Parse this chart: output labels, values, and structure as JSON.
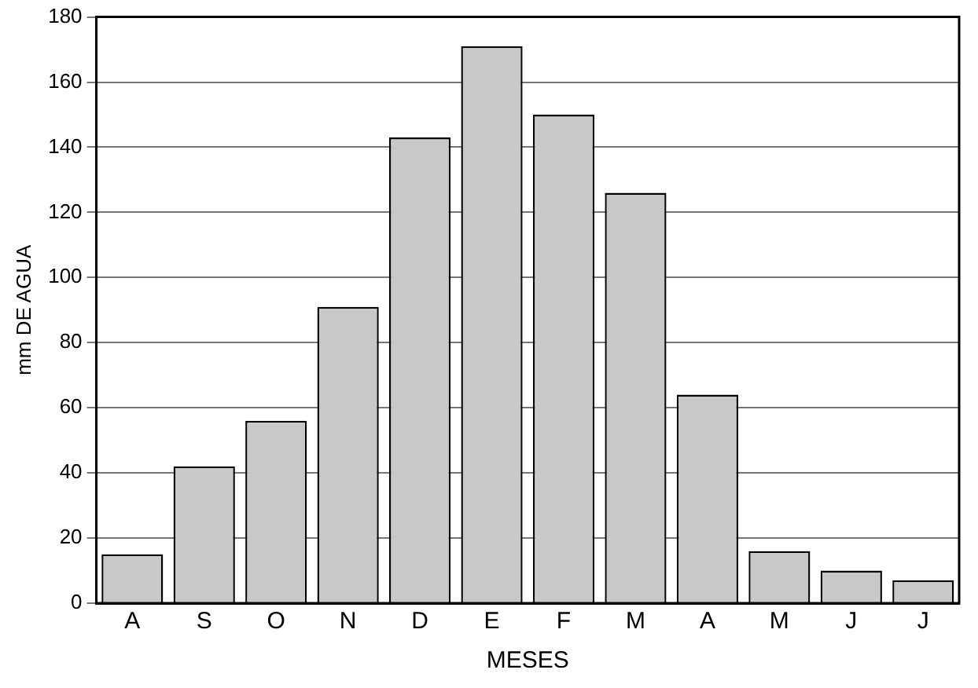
{
  "chart_data": {
    "type": "bar",
    "xlabel": "MESES",
    "ylabel": "mm DE AGUA",
    "categories": [
      "A",
      "S",
      "O",
      "N",
      "D",
      "E",
      "F",
      "M",
      "A",
      "M",
      "J",
      "J"
    ],
    "values": [
      15,
      42,
      56,
      91,
      143,
      171,
      150,
      126,
      64,
      16,
      10,
      7
    ],
    "color": "#c8c8c8",
    "ylim": [
      0,
      180
    ],
    "yticks": [
      0,
      20,
      40,
      60,
      80,
      100,
      120,
      140,
      160,
      180
    ],
    "grid": "y"
  }
}
